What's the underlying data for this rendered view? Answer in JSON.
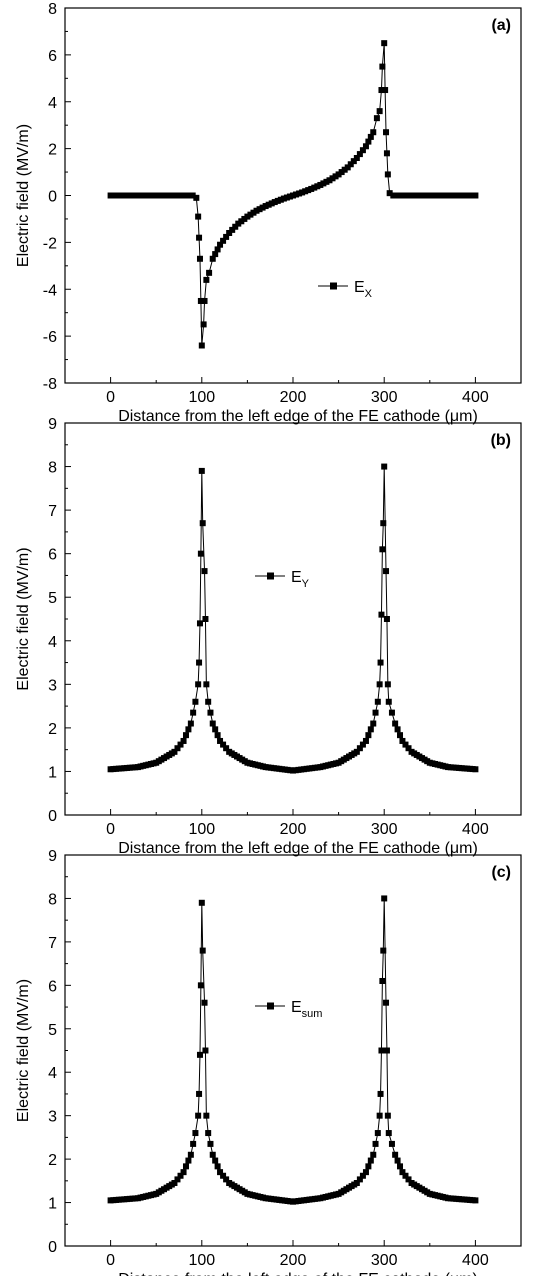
{
  "colors": {
    "series": "#000000",
    "axis": "#000000",
    "background": "#ffffff"
  },
  "chart_data": [
    {
      "type": "scatter",
      "panel_label": "(a)",
      "xlabel": "Distance from the left edge of the FE cathode (μm)",
      "ylabel": "Electric field (MV/m)",
      "xlim": [
        -50,
        450
      ],
      "ylim": [
        -8,
        8
      ],
      "xticks": [
        0,
        100,
        200,
        300,
        400
      ],
      "yticks": [
        -8,
        -6,
        -4,
        -2,
        0,
        2,
        4,
        6,
        8
      ],
      "legend": {
        "name": "E",
        "sub": "X",
        "placement": "center"
      },
      "grid": false,
      "series": [
        {
          "name": "E_X",
          "points": [
            [
              0,
              0
            ],
            [
              80,
              0
            ],
            [
              90,
              0
            ],
            [
              94,
              -0.1
            ],
            [
              96,
              -0.9
            ],
            [
              97,
              -1.8
            ],
            [
              98,
              -2.7
            ],
            [
              99,
              -4.5
            ],
            [
              100,
              -6.4
            ],
            [
              102,
              -5.5
            ],
            [
              103,
              -4.5
            ],
            [
              105,
              -3.6
            ],
            [
              108,
              -3.3
            ],
            [
              112,
              -2.7
            ],
            [
              120,
              -2.1
            ],
            [
              130,
              -1.6
            ],
            [
              140,
              -1.2
            ],
            [
              150,
              -0.9
            ],
            [
              160,
              -0.65
            ],
            [
              170,
              -0.45
            ],
            [
              180,
              -0.28
            ],
            [
              190,
              -0.13
            ],
            [
              200,
              0
            ],
            [
              210,
              0.13
            ],
            [
              220,
              0.28
            ],
            [
              230,
              0.45
            ],
            [
              240,
              0.65
            ],
            [
              250,
              0.9
            ],
            [
              260,
              1.2
            ],
            [
              270,
              1.6
            ],
            [
              280,
              2.1
            ],
            [
              288,
              2.7
            ],
            [
              292,
              3.3
            ],
            [
              295,
              3.6
            ],
            [
              297,
              4.5
            ],
            [
              298,
              5.5
            ],
            [
              300,
              6.5
            ],
            [
              301,
              4.5
            ],
            [
              302,
              2.7
            ],
            [
              303,
              1.8
            ],
            [
              304,
              0.9
            ],
            [
              306,
              0.1
            ],
            [
              310,
              0
            ],
            [
              320,
              0
            ],
            [
              400,
              0
            ]
          ]
        }
      ]
    },
    {
      "type": "scatter",
      "panel_label": "(b)",
      "xlabel": "Distance from the left edge of the FE cathode (μm)",
      "ylabel": "Electric field (MV/m)",
      "xlim": [
        -50,
        450
      ],
      "ylim": [
        0,
        9
      ],
      "xticks": [
        0,
        100,
        200,
        300,
        400
      ],
      "yticks": [
        0,
        1,
        2,
        3,
        4,
        5,
        6,
        7,
        8,
        9
      ],
      "legend": {
        "name": "E",
        "sub": "Y",
        "placement": "upper-center"
      },
      "grid": false,
      "series": [
        {
          "name": "E_Y",
          "points": [
            [
              0,
              1.05
            ],
            [
              30,
              1.1
            ],
            [
              50,
              1.2
            ],
            [
              70,
              1.45
            ],
            [
              80,
              1.7
            ],
            [
              88,
              2.1
            ],
            [
              93,
              2.6
            ],
            [
              96,
              3.0
            ],
            [
              97,
              3.5
            ],
            [
              98,
              4.4
            ],
            [
              99,
              6.0
            ],
            [
              100,
              7.9
            ],
            [
              101,
              6.7
            ],
            [
              103,
              5.6
            ],
            [
              104,
              4.5
            ],
            [
              105,
              3.0
            ],
            [
              107,
              2.6
            ],
            [
              112,
              2.1
            ],
            [
              120,
              1.7
            ],
            [
              130,
              1.45
            ],
            [
              150,
              1.2
            ],
            [
              170,
              1.1
            ],
            [
              200,
              1.02
            ],
            [
              230,
              1.1
            ],
            [
              250,
              1.2
            ],
            [
              270,
              1.45
            ],
            [
              280,
              1.7
            ],
            [
              288,
              2.1
            ],
            [
              293,
              2.6
            ],
            [
              295,
              3.0
            ],
            [
              296,
              3.5
            ],
            [
              297,
              4.6
            ],
            [
              298,
              6.1
            ],
            [
              299,
              6.7
            ],
            [
              300,
              8.0
            ],
            [
              302,
              5.6
            ],
            [
              303,
              4.5
            ],
            [
              304,
              3.0
            ],
            [
              305,
              2.6
            ],
            [
              312,
              2.1
            ],
            [
              320,
              1.7
            ],
            [
              330,
              1.45
            ],
            [
              350,
              1.2
            ],
            [
              370,
              1.1
            ],
            [
              400,
              1.05
            ]
          ]
        }
      ]
    },
    {
      "type": "scatter",
      "panel_label": "(c)",
      "xlabel": "Distance from the left edge of the FE cathode (μm)",
      "ylabel": "Electric field (MV/m)",
      "xlim": [
        -50,
        450
      ],
      "ylim": [
        0,
        9
      ],
      "xticks": [
        0,
        100,
        200,
        300,
        400
      ],
      "yticks": [
        0,
        1,
        2,
        3,
        4,
        5,
        6,
        7,
        8,
        9
      ],
      "legend": {
        "name": "E",
        "sub": "sum",
        "placement": "upper-center"
      },
      "grid": false,
      "series": [
        {
          "name": "E_sum",
          "points": [
            [
              0,
              1.05
            ],
            [
              30,
              1.1
            ],
            [
              50,
              1.2
            ],
            [
              70,
              1.45
            ],
            [
              80,
              1.7
            ],
            [
              88,
              2.1
            ],
            [
              93,
              2.6
            ],
            [
              96,
              3.0
            ],
            [
              97,
              3.5
            ],
            [
              98,
              4.4
            ],
            [
              99,
              6.0
            ],
            [
              100,
              7.9
            ],
            [
              101,
              6.8
            ],
            [
              103,
              5.6
            ],
            [
              104,
              4.5
            ],
            [
              105,
              3.0
            ],
            [
              107,
              2.6
            ],
            [
              112,
              2.1
            ],
            [
              120,
              1.7
            ],
            [
              130,
              1.45
            ],
            [
              150,
              1.2
            ],
            [
              170,
              1.1
            ],
            [
              200,
              1.02
            ],
            [
              230,
              1.1
            ],
            [
              250,
              1.2
            ],
            [
              270,
              1.45
            ],
            [
              280,
              1.7
            ],
            [
              288,
              2.1
            ],
            [
              293,
              2.6
            ],
            [
              295,
              3.0
            ],
            [
              296,
              3.5
            ],
            [
              297,
              4.5
            ],
            [
              298,
              6.1
            ],
            [
              299,
              6.8
            ],
            [
              300,
              8.0
            ],
            [
              302,
              5.6
            ],
            [
              303,
              4.5
            ],
            [
              304,
              3.0
            ],
            [
              305,
              2.6
            ],
            [
              312,
              2.1
            ],
            [
              320,
              1.7
            ],
            [
              330,
              1.45
            ],
            [
              350,
              1.2
            ],
            [
              370,
              1.1
            ],
            [
              400,
              1.05
            ]
          ]
        }
      ]
    }
  ]
}
